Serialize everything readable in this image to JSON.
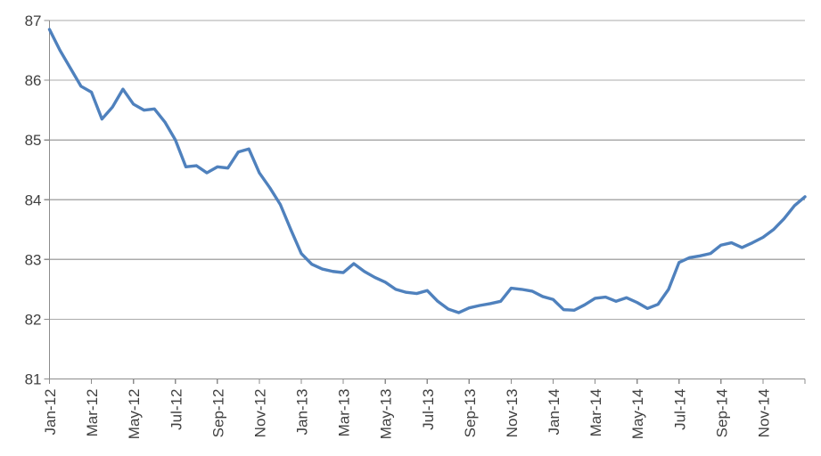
{
  "chart_data": {
    "type": "line",
    "title": "",
    "xlabel": "",
    "ylabel": "",
    "legend": "none",
    "grid": "horizontal",
    "ylim": [
      81,
      87
    ],
    "xlim_months": [
      0,
      36
    ],
    "y_ticks": [
      81,
      82,
      83,
      84,
      85,
      86,
      87
    ],
    "x_tick_labels": [
      "Jan-12",
      "Mar-12",
      "May-12",
      "Jul-12",
      "Sep-12",
      "Nov-12",
      "Jan-13",
      "Mar-13",
      "May-13",
      "Jul-13",
      "Sep-13",
      "Nov-13",
      "Jan-14",
      "Mar-14",
      "May-14",
      "Jul-14",
      "Sep-14",
      "Nov-14"
    ],
    "x_tick_positions_months": [
      0,
      2,
      4,
      6,
      8,
      10,
      12,
      14,
      16,
      18,
      20,
      22,
      24,
      26,
      28,
      30,
      32,
      34
    ],
    "series": [
      {
        "name": "value",
        "x_months": [
          0,
          0.5,
          1,
          1.5,
          2,
          2.5,
          3,
          3.5,
          4,
          4.5,
          5,
          5.5,
          6,
          6.5,
          7,
          7.5,
          8,
          8.5,
          9,
          9.5,
          10,
          10.5,
          11,
          11.5,
          12,
          12.5,
          13,
          13.5,
          14,
          14.5,
          15,
          15.5,
          16,
          16.5,
          17,
          17.5,
          18,
          18.5,
          19,
          19.5,
          20,
          20.5,
          21,
          21.5,
          22,
          22.5,
          23,
          23.5,
          24,
          24.5,
          25,
          25.5,
          26,
          26.5,
          27,
          27.5,
          28,
          28.5,
          29,
          29.5,
          30,
          30.5,
          31,
          31.5,
          32,
          32.5,
          33,
          33.5,
          34,
          34.5,
          35,
          35.5,
          36
        ],
        "values": [
          86.85,
          86.5,
          86.2,
          85.9,
          85.8,
          85.35,
          85.55,
          85.85,
          85.6,
          85.5,
          85.52,
          85.3,
          85.0,
          84.55,
          84.57,
          84.45,
          84.55,
          84.53,
          84.8,
          84.85,
          84.45,
          84.2,
          83.92,
          83.5,
          83.1,
          82.92,
          82.84,
          82.8,
          82.78,
          82.93,
          82.8,
          82.7,
          82.62,
          82.5,
          82.45,
          82.43,
          82.48,
          82.3,
          82.17,
          82.11,
          82.19,
          82.23,
          82.26,
          82.3,
          82.52,
          82.5,
          82.47,
          82.38,
          82.33,
          82.16,
          82.15,
          82.24,
          82.35,
          82.37,
          82.3,
          82.36,
          82.28,
          82.18,
          82.25,
          82.5,
          82.95,
          83.03,
          83.06,
          83.1,
          83.24,
          83.28,
          83.2,
          83.28,
          83.37,
          83.5,
          83.68,
          83.9,
          84.05
        ]
      }
    ],
    "colors": {
      "line": "#4F81BD",
      "gridline": "#ABABAB",
      "axis": "#8C8C8C",
      "tick": "#8C8C8C",
      "label_text": "#404040",
      "background": "#FFFFFF"
    }
  }
}
